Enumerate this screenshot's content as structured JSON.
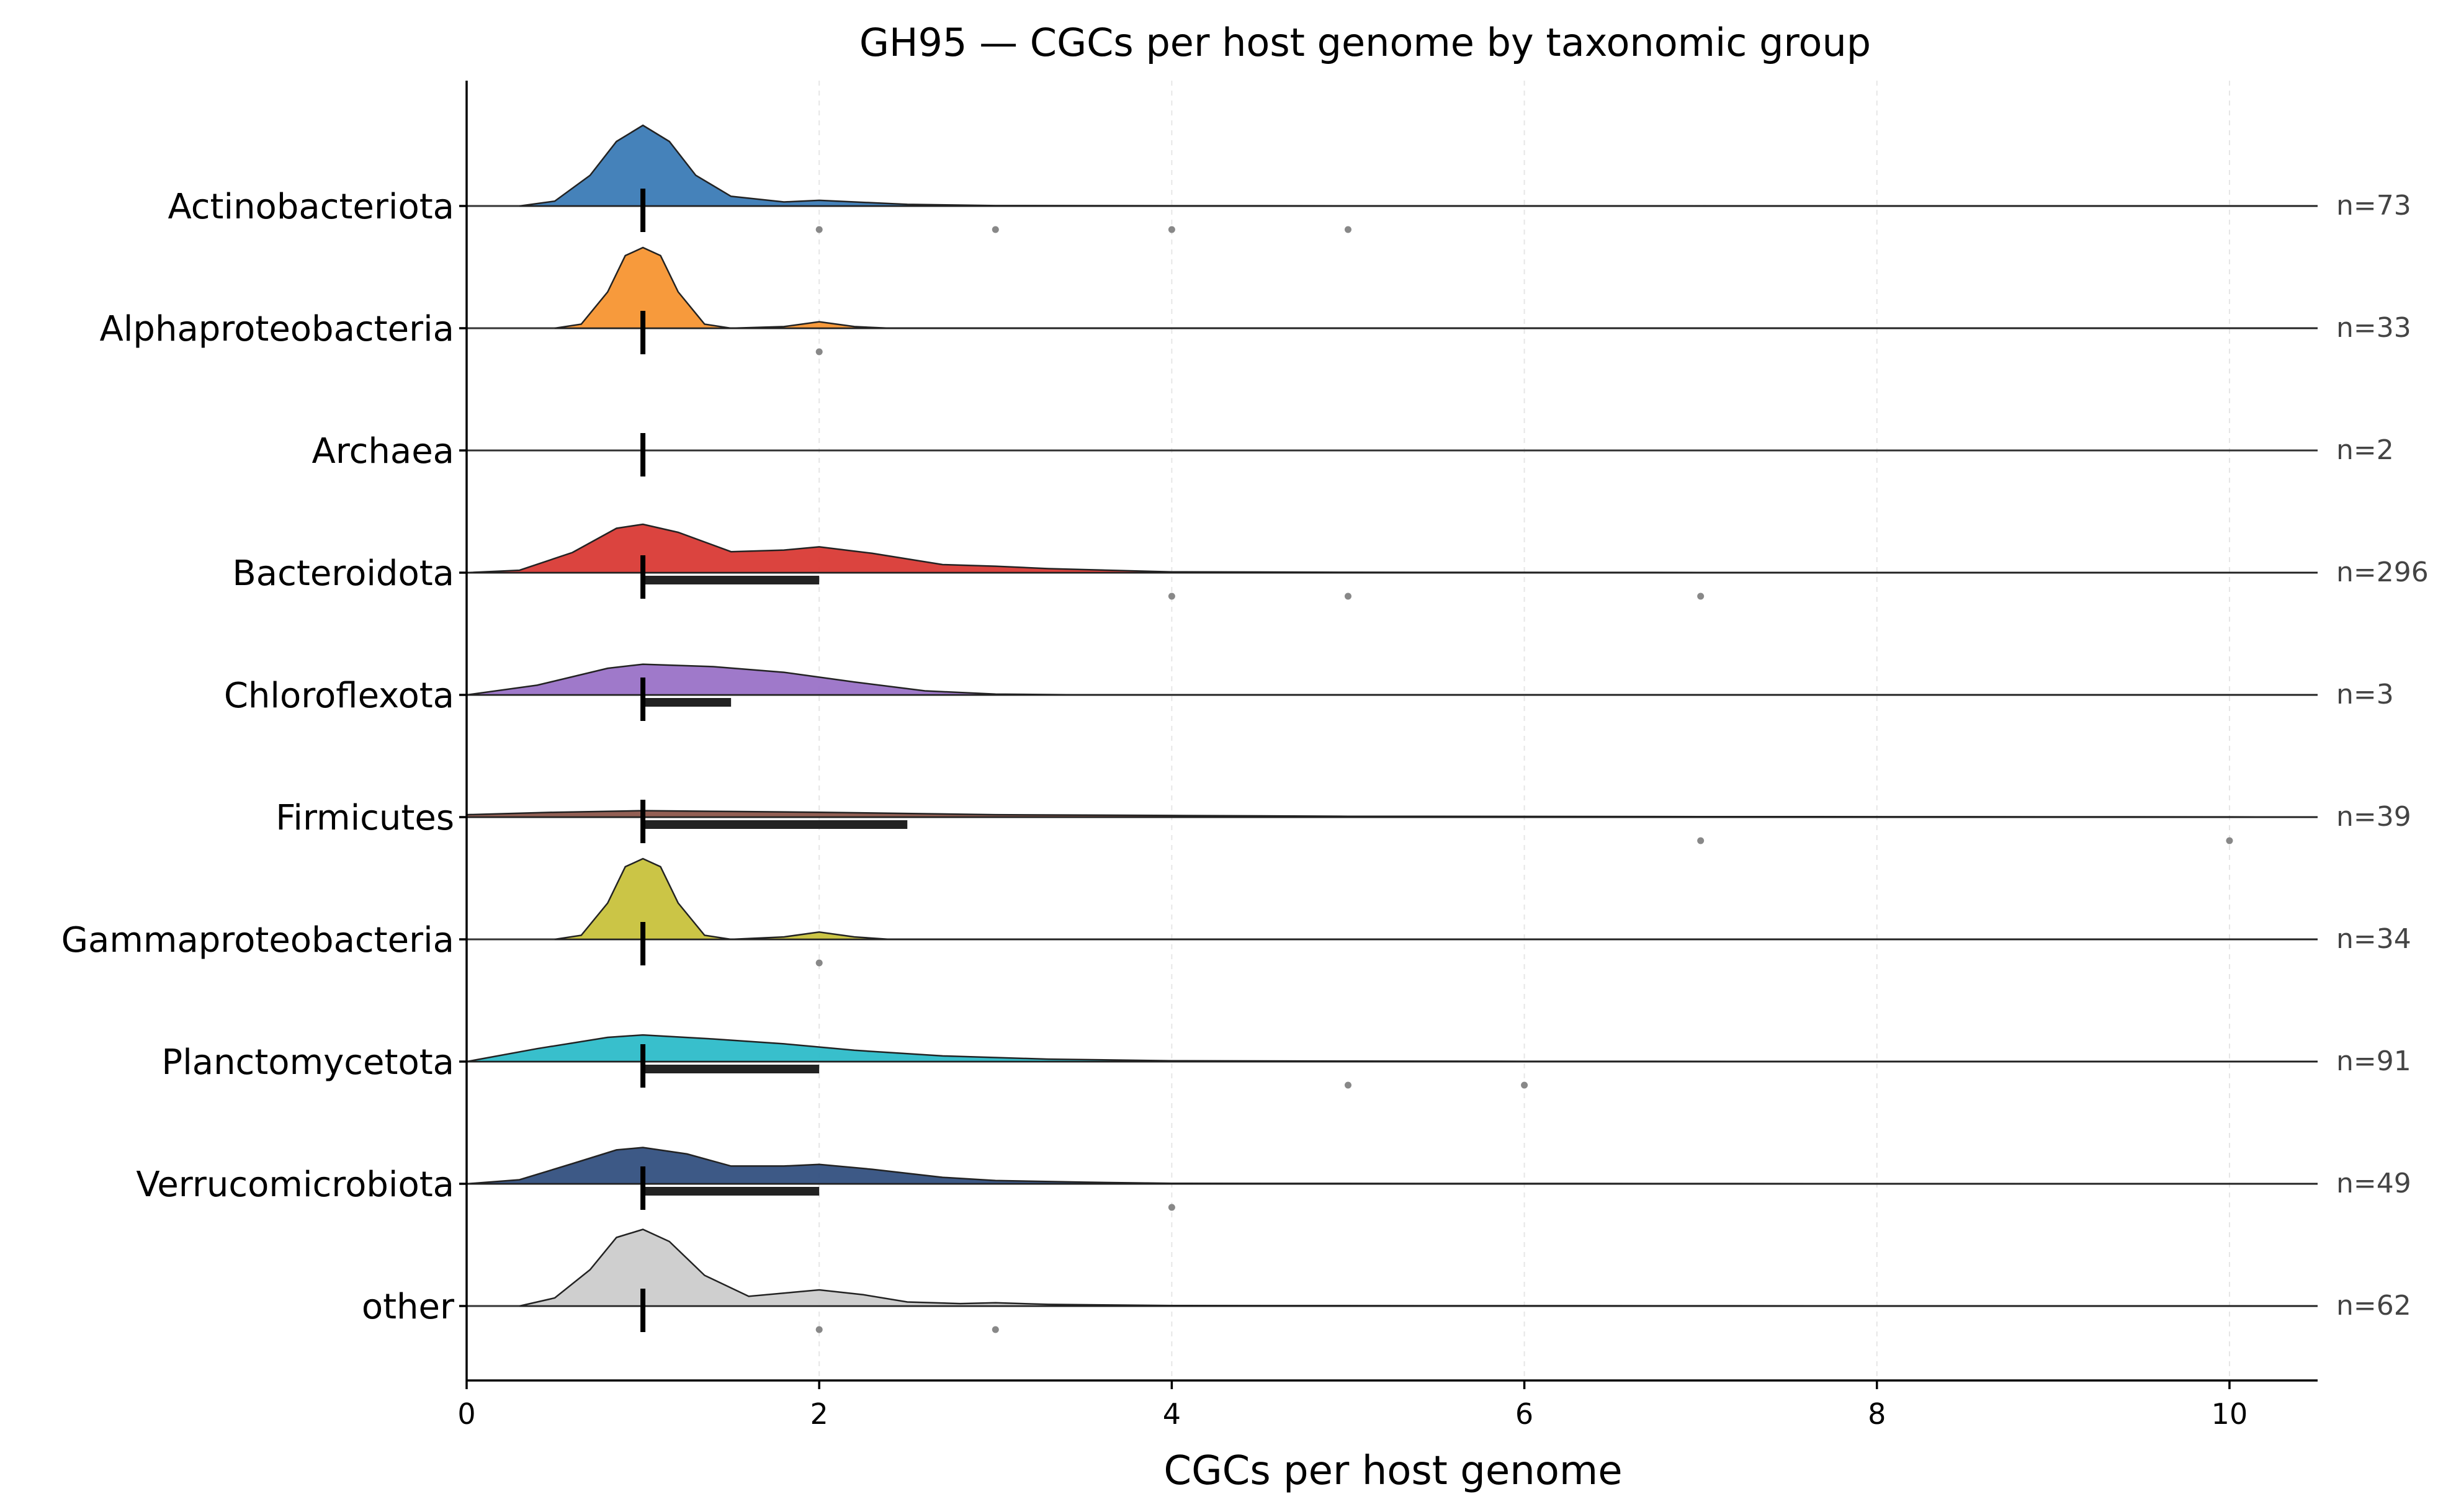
{
  "chart_data": {
    "type": "ridgeline",
    "title": "GH95 — CGCs per host genome by taxonomic group",
    "xlabel": "CGCs per host genome",
    "ylabel": "",
    "xlim": [
      0,
      10.5
    ],
    "xticks": [
      0,
      2,
      4,
      6,
      8,
      10
    ],
    "grid": "vertical dashed at x ticks",
    "groups": [
      {
        "name": "Actinobacteriota",
        "n_label": "n=73",
        "color": "#3b7bb6",
        "median": 1,
        "iqr": [
          1,
          1
        ],
        "outliers": [
          2,
          3,
          4,
          5
        ],
        "density": [
          [
            0.3,
            0
          ],
          [
            0.5,
            0.06
          ],
          [
            0.7,
            0.38
          ],
          [
            0.85,
            0.8
          ],
          [
            1.0,
            1.0
          ],
          [
            1.15,
            0.8
          ],
          [
            1.3,
            0.38
          ],
          [
            1.5,
            0.12
          ],
          [
            1.8,
            0.05
          ],
          [
            2.0,
            0.07
          ],
          [
            2.2,
            0.05
          ],
          [
            2.5,
            0.02
          ],
          [
            3.0,
            0.005
          ],
          [
            4.0,
            0.003
          ],
          [
            5.0,
            0.002
          ],
          [
            10.5,
            0
          ]
        ]
      },
      {
        "name": "Alphaproteobacteria",
        "n_label": "n=33",
        "color": "#f79532",
        "median": 1,
        "iqr": [
          1,
          1
        ],
        "outliers": [
          2
        ],
        "density": [
          [
            0.5,
            0
          ],
          [
            0.65,
            0.05
          ],
          [
            0.8,
            0.45
          ],
          [
            0.9,
            0.9
          ],
          [
            1.0,
            1.0
          ],
          [
            1.1,
            0.9
          ],
          [
            1.2,
            0.45
          ],
          [
            1.35,
            0.05
          ],
          [
            1.5,
            0
          ],
          [
            1.8,
            0.02
          ],
          [
            2.0,
            0.08
          ],
          [
            2.2,
            0.02
          ],
          [
            2.4,
            0
          ],
          [
            10.5,
            0
          ]
        ]
      },
      {
        "name": "Archaea",
        "n_label": "n=2",
        "color": "#2ca02c",
        "median": 1,
        "iqr": [
          1,
          1
        ],
        "outliers": [],
        "density": []
      },
      {
        "name": "Bacteroidota",
        "n_label": "n=296",
        "color": "#d93a35",
        "median": 1,
        "iqr": [
          1,
          2
        ],
        "outliers": [
          4,
          5,
          7
        ],
        "density": [
          [
            0,
            0
          ],
          [
            0.3,
            0.03
          ],
          [
            0.6,
            0.25
          ],
          [
            0.85,
            0.55
          ],
          [
            1.0,
            0.6
          ],
          [
            1.2,
            0.5
          ],
          [
            1.5,
            0.26
          ],
          [
            1.8,
            0.28
          ],
          [
            2.0,
            0.32
          ],
          [
            2.3,
            0.24
          ],
          [
            2.7,
            0.1
          ],
          [
            3.0,
            0.08
          ],
          [
            3.3,
            0.05
          ],
          [
            4.0,
            0.01
          ],
          [
            5.0,
            0.005
          ],
          [
            7.0,
            0.002
          ],
          [
            10.5,
            0
          ]
        ]
      },
      {
        "name": "Chloroflexota",
        "n_label": "n=3",
        "color": "#9a72c7",
        "median": 1,
        "iqr": [
          1,
          1.5
        ],
        "outliers": [],
        "density": [
          [
            0,
            0
          ],
          [
            0.4,
            0.12
          ],
          [
            0.8,
            0.33
          ],
          [
            1.0,
            0.38
          ],
          [
            1.4,
            0.35
          ],
          [
            1.8,
            0.28
          ],
          [
            2.2,
            0.16
          ],
          [
            2.6,
            0.05
          ],
          [
            3.0,
            0.01
          ],
          [
            3.5,
            0
          ],
          [
            10.5,
            0
          ]
        ]
      },
      {
        "name": "Firmicutes",
        "n_label": "n=39",
        "color": "#8c564b",
        "median": 1,
        "iqr": [
          1,
          2.5
        ],
        "outliers": [
          7,
          10
        ],
        "density": [
          [
            0,
            0.03
          ],
          [
            0.5,
            0.06
          ],
          [
            1.0,
            0.08
          ],
          [
            1.5,
            0.07
          ],
          [
            2.0,
            0.06
          ],
          [
            3.0,
            0.03
          ],
          [
            4.0,
            0.02
          ],
          [
            5.0,
            0.01
          ],
          [
            7.0,
            0.006
          ],
          [
            10.0,
            0.003
          ],
          [
            10.5,
            0
          ]
        ]
      },
      {
        "name": "Gammaproteobacteria",
        "n_label": "n=34",
        "color": "#c8c23c",
        "median": 1,
        "iqr": [
          1,
          1
        ],
        "outliers": [
          2
        ],
        "density": [
          [
            0.5,
            0
          ],
          [
            0.65,
            0.05
          ],
          [
            0.8,
            0.45
          ],
          [
            0.9,
            0.9
          ],
          [
            1.0,
            1.0
          ],
          [
            1.1,
            0.9
          ],
          [
            1.2,
            0.45
          ],
          [
            1.35,
            0.05
          ],
          [
            1.5,
            0
          ],
          [
            1.8,
            0.03
          ],
          [
            2.0,
            0.09
          ],
          [
            2.2,
            0.03
          ],
          [
            2.4,
            0
          ],
          [
            10.5,
            0
          ]
        ]
      },
      {
        "name": "Planctomycetota",
        "n_label": "n=91",
        "color": "#2dbcc9",
        "median": 1,
        "iqr": [
          1,
          2
        ],
        "outliers": [
          5,
          6
        ],
        "density": [
          [
            0,
            0
          ],
          [
            0.4,
            0.16
          ],
          [
            0.8,
            0.3
          ],
          [
            1.0,
            0.33
          ],
          [
            1.4,
            0.28
          ],
          [
            1.8,
            0.22
          ],
          [
            2.2,
            0.14
          ],
          [
            2.7,
            0.07
          ],
          [
            3.3,
            0.03
          ],
          [
            4.0,
            0.01
          ],
          [
            5.0,
            0.005
          ],
          [
            6.0,
            0.003
          ],
          [
            10.5,
            0
          ]
        ]
      },
      {
        "name": "Verrucomicrobiota",
        "n_label": "n=49",
        "color": "#33507f",
        "median": 1,
        "iqr": [
          1,
          2
        ],
        "outliers": [
          4
        ],
        "density": [
          [
            0,
            0
          ],
          [
            0.3,
            0.05
          ],
          [
            0.6,
            0.25
          ],
          [
            0.85,
            0.42
          ],
          [
            1.0,
            0.45
          ],
          [
            1.25,
            0.37
          ],
          [
            1.5,
            0.22
          ],
          [
            1.8,
            0.22
          ],
          [
            2.0,
            0.24
          ],
          [
            2.3,
            0.18
          ],
          [
            2.7,
            0.08
          ],
          [
            3.0,
            0.04
          ],
          [
            3.5,
            0.02
          ],
          [
            4.0,
            0.005
          ],
          [
            10.5,
            0
          ]
        ]
      },
      {
        "name": "other",
        "n_label": "n=62",
        "color": "#cccccc",
        "median": 1,
        "iqr": [
          1,
          1
        ],
        "outliers": [
          2,
          3
        ],
        "density": [
          [
            0.3,
            0
          ],
          [
            0.5,
            0.1
          ],
          [
            0.7,
            0.45
          ],
          [
            0.85,
            0.85
          ],
          [
            1.0,
            0.95
          ],
          [
            1.15,
            0.8
          ],
          [
            1.35,
            0.38
          ],
          [
            1.6,
            0.12
          ],
          [
            1.85,
            0.17
          ],
          [
            2.0,
            0.2
          ],
          [
            2.25,
            0.14
          ],
          [
            2.5,
            0.05
          ],
          [
            2.8,
            0.03
          ],
          [
            3.0,
            0.04
          ],
          [
            3.3,
            0.02
          ],
          [
            4.0,
            0.005
          ],
          [
            10.5,
            0
          ]
        ]
      }
    ]
  }
}
